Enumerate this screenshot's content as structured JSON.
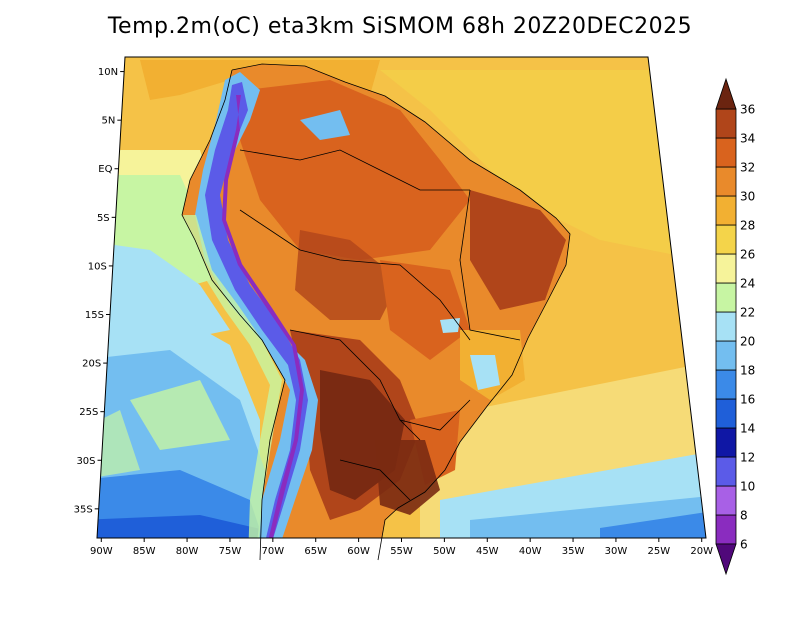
{
  "title": "Temp.2m(oC) eta3km SiSMOM 68h 20Z20DEC2025",
  "map": {
    "lon_labels": [
      "90W",
      "85W",
      "80W",
      "75W",
      "70W",
      "65W",
      "60W",
      "55W",
      "50W",
      "45W",
      "40W",
      "35W",
      "30W",
      "25W",
      "20W"
    ],
    "lon_values": [
      -90,
      -85,
      -80,
      -75,
      -70,
      -65,
      -60,
      -55,
      -50,
      -45,
      -40,
      -35,
      -30,
      -25,
      -20
    ],
    "lat_labels": [
      "10N",
      "5N",
      "EQ",
      "5S",
      "10S",
      "15S",
      "20S",
      "25S",
      "30S",
      "35S"
    ],
    "lat_values": [
      10,
      5,
      0,
      -5,
      -10,
      -15,
      -20,
      -25,
      -30,
      -35
    ],
    "lon_range": [
      -90.5,
      -19.5
    ],
    "lat_range": [
      11.5,
      -38.0
    ]
  },
  "colorbar": {
    "levels": [
      "6",
      "8",
      "10",
      "12",
      "14",
      "16",
      "18",
      "20",
      "22",
      "24",
      "26",
      "28",
      "30",
      "32",
      "34",
      "36"
    ],
    "colors": [
      "#5a0a87",
      "#8a2cbf",
      "#a860e6",
      "#5b5be8",
      "#0f17a5",
      "#1f5fd9",
      "#3b8ae8",
      "#73bef0",
      "#a7e1f5",
      "#c7f5a3",
      "#f6f39a",
      "#f4d44a",
      "#f2b032",
      "#e98a2b",
      "#d9631e",
      "#b0451a",
      "#7a2a12"
    ],
    "top_color": "#6b2410",
    "bottom_color": "#50087a"
  }
}
